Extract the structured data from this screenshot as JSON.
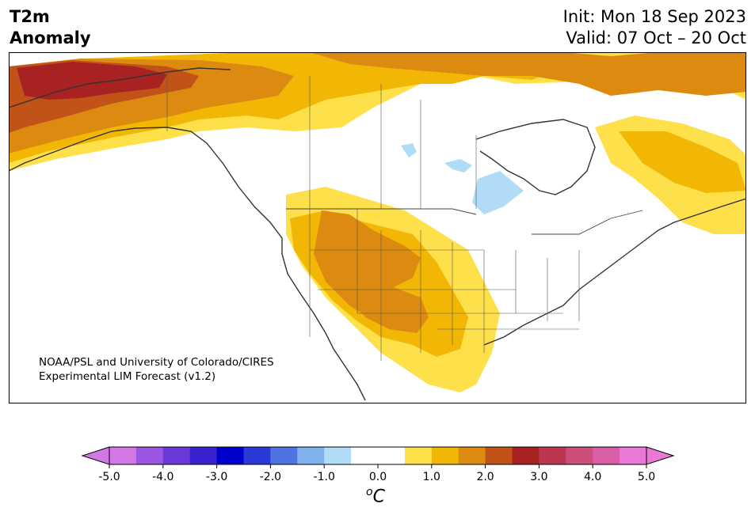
{
  "header": {
    "title_line1": "T2m",
    "title_line2": "Anomaly",
    "init": "Init: Mon 18 Sep 2023",
    "valid": "Valid: 07 Oct – 20 Oct"
  },
  "credit": {
    "line1": "NOAA/PSL and University of Colorado/CIRES",
    "line2": "Experimental LIM Forecast (v1.2)"
  },
  "colorbar": {
    "ticks": [
      "-5.0",
      "-4.0",
      "-3.0",
      "-2.0",
      "-1.0",
      "0.0",
      "1.0",
      "2.0",
      "3.0",
      "4.0",
      "5.0"
    ],
    "unit": "°C",
    "unit_sup": "o",
    "unit_letter": "C",
    "colors": [
      "#d277e6",
      "#9b55e0",
      "#6a3ad8",
      "#3a22d0",
      "#0000cc",
      "#2a3ad8",
      "#4f73e0",
      "#7fb1ef",
      "#b0dcf8",
      "#ffffff",
      "#ffffff",
      "#fde04a",
      "#f2b705",
      "#dd8a10",
      "#c25318",
      "#a82222",
      "#bd364f",
      "#cc4c7a",
      "#d85ea5",
      "#e879d6"
    ],
    "over_color": "#e879d6",
    "under_color": "#d277e6"
  },
  "map_legend": {
    "anomaly_colors": {
      "slight_warm": "#fde04a",
      "warm": "#f2b705",
      "warmer": "#dd8a10",
      "hot": "#c25318",
      "very_hot": "#a82222",
      "slight_cool": "#b0dcf8"
    }
  }
}
